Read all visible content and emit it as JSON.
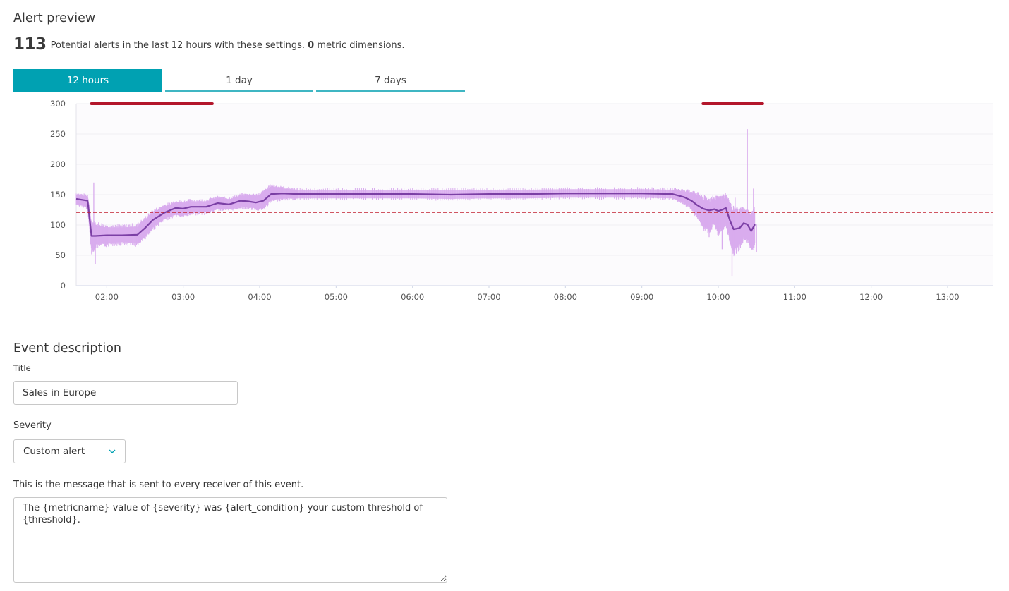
{
  "alert_preview": {
    "title": "Alert preview",
    "count": "113",
    "summary_text": "Potential alerts in the last 12 hours with these settings.",
    "dimensions_count": "0",
    "dimensions_label": "metric dimensions."
  },
  "tabs": [
    {
      "label": "12 hours",
      "active": true
    },
    {
      "label": "1 day",
      "active": false
    },
    {
      "label": "7 days",
      "active": false
    }
  ],
  "colors": {
    "accent": "#00a1b2",
    "tab_underline": "#3fb6c3",
    "threshold": "#c21f2f",
    "alert_bar": "#b3162b",
    "band": "#d9acee",
    "series": "#7b3fa5"
  },
  "chart_data": {
    "type": "line",
    "ylim": [
      0,
      300
    ],
    "yticks": [
      "300",
      "250",
      "200",
      "150",
      "100",
      "50",
      "0"
    ],
    "xticks": [
      "02:00",
      "03:00",
      "04:00",
      "05:00",
      "06:00",
      "07:00",
      "08:00",
      "09:00",
      "10:00",
      "11:00",
      "12:00",
      "13:00"
    ],
    "xlim_hours": [
      1.6,
      13.6
    ],
    "threshold": 121,
    "grid": true,
    "alert_periods": [
      [
        1.8,
        3.38
      ],
      [
        9.8,
        10.58
      ]
    ],
    "series": [
      {
        "x": [
          1.6,
          1.75,
          1.8,
          1.85,
          2.0,
          2.2,
          2.4,
          2.5,
          2.6,
          2.75,
          2.9,
          3.0,
          3.1,
          3.3,
          3.45,
          3.6,
          3.75,
          3.85,
          3.95,
          4.05,
          4.15,
          4.3,
          4.5,
          5.0,
          5.5,
          6.0,
          6.5,
          7.0,
          7.5,
          8.0,
          8.5,
          9.0,
          9.4,
          9.55,
          9.65,
          9.72,
          9.8,
          9.88,
          9.95,
          10.0,
          10.05,
          10.1,
          10.15,
          10.2,
          10.28,
          10.33,
          10.38,
          10.43,
          10.48
        ],
        "values": [
          143,
          140,
          82,
          82,
          83,
          83,
          84,
          95,
          108,
          120,
          128,
          127,
          130,
          130,
          136,
          134,
          140,
          139,
          137,
          140,
          151,
          152,
          151,
          151,
          151,
          151,
          150,
          151,
          151,
          152,
          152,
          152,
          151,
          146,
          140,
          133,
          127,
          124,
          126,
          123,
          125,
          128,
          108,
          93,
          95,
          103,
          101,
          90,
          101
        ],
        "upper": [
          150,
          147,
          98,
          99,
          96,
          96,
          97,
          108,
          120,
          130,
          137,
          136,
          139,
          139,
          144,
          142,
          148,
          148,
          147,
          152,
          163,
          160,
          158,
          158,
          158,
          158,
          158,
          158,
          158,
          159,
          159,
          159,
          158,
          155,
          152,
          148,
          140,
          137,
          140,
          137,
          140,
          144,
          128,
          118,
          118,
          120,
          118,
          112,
          120
        ],
        "lower": [
          135,
          130,
          60,
          68,
          70,
          72,
          70,
          82,
          96,
          110,
          118,
          117,
          120,
          121,
          127,
          126,
          131,
          130,
          128,
          129,
          142,
          144,
          144,
          144,
          144,
          144,
          143,
          144,
          144,
          145,
          145,
          145,
          144,
          137,
          128,
          118,
          100,
          95,
          105,
          92,
          100,
          105,
          82,
          62,
          70,
          82,
          80,
          68,
          72
        ],
        "spikes": [
          [
            1.83,
            170
          ],
          [
            1.85,
            35
          ],
          [
            9.88,
            80
          ],
          [
            10.05,
            60
          ],
          [
            10.18,
            15
          ],
          [
            10.22,
            145
          ],
          [
            10.38,
            258
          ],
          [
            10.46,
            160
          ],
          [
            10.5,
            55
          ]
        ]
      }
    ]
  },
  "event_description": {
    "title": "Event description",
    "title_label": "Title",
    "title_value": "Sales in Europe",
    "severity_label": "Severity",
    "severity_value": "Custom alert",
    "message_label": "This is the message that is sent to every receiver of this event.",
    "message_value": "The {metricname} value of {severity} was {alert_condition} your custom threshold of {threshold}."
  }
}
